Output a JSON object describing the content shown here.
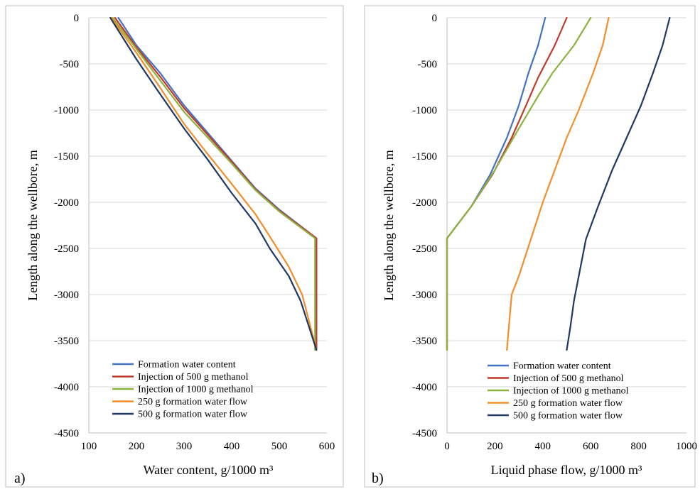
{
  "chart_data": [
    {
      "type": "line",
      "panel_label": "a)",
      "xlabel": "Water content, g/1000 m³",
      "ylabel": "Length along the wellbore, m",
      "xlim": [
        100,
        600
      ],
      "ylim": [
        -4500,
        0
      ],
      "xticks": [
        100,
        200,
        300,
        400,
        500,
        600
      ],
      "yticks": [
        0,
        -500,
        -1000,
        -1500,
        -2000,
        -2500,
        -3000,
        -3500,
        -4000,
        -4500
      ],
      "grid": "horizontal",
      "legend_position": "bottom-left",
      "series": [
        {
          "name": "Formation water content",
          "color": "#4472C4",
          "points": [
            [
              162,
              0
            ],
            [
              200,
              -300
            ],
            [
              250,
              -600
            ],
            [
              300,
              -950
            ],
            [
              350,
              -1250
            ],
            [
              400,
              -1550
            ],
            [
              450,
              -1850
            ],
            [
              500,
              -2080
            ],
            [
              578,
              -2390
            ],
            [
              578,
              -3600
            ]
          ]
        },
        {
          "name": "Injection of 500 g methanol",
          "color": "#C0392B",
          "points": [
            [
              155,
              0
            ],
            [
              200,
              -320
            ],
            [
              250,
              -640
            ],
            [
              300,
              -980
            ],
            [
              350,
              -1270
            ],
            [
              400,
              -1560
            ],
            [
              450,
              -1860
            ],
            [
              500,
              -2090
            ],
            [
              578,
              -2390
            ],
            [
              578,
              -3600
            ]
          ]
        },
        {
          "name": "Injection of 1000 g methanol",
          "color": "#8DB33F",
          "points": [
            [
              150,
              0
            ],
            [
              200,
              -340
            ],
            [
              250,
              -680
            ],
            [
              300,
              -1020
            ],
            [
              350,
              -1300
            ],
            [
              400,
              -1580
            ],
            [
              450,
              -1870
            ],
            [
              500,
              -2100
            ],
            [
              575,
              -2390
            ],
            [
              575,
              -3600
            ]
          ]
        },
        {
          "name": "250 g formation water flow",
          "color": "#F28E2B",
          "points": [
            [
              147,
              0
            ],
            [
              200,
              -380
            ],
            [
              250,
              -760
            ],
            [
              300,
              -1150
            ],
            [
              350,
              -1480
            ],
            [
              400,
              -1800
            ],
            [
              450,
              -2130
            ],
            [
              480,
              -2370
            ],
            [
              520,
              -2700
            ],
            [
              548,
              -3000
            ],
            [
              578,
              -3600
            ]
          ]
        },
        {
          "name": "500 g formation water flow",
          "color": "#1F3864",
          "points": [
            [
              145,
              0
            ],
            [
              200,
              -450
            ],
            [
              250,
              -830
            ],
            [
              300,
              -1200
            ],
            [
              350,
              -1540
            ],
            [
              400,
              -1900
            ],
            [
              450,
              -2230
            ],
            [
              480,
              -2500
            ],
            [
              520,
              -2800
            ],
            [
              545,
              -3070
            ],
            [
              578,
              -3600
            ]
          ]
        }
      ]
    },
    {
      "type": "line",
      "panel_label": "b)",
      "xlabel": "Liquid phase flow, g/1000 m³",
      "ylabel": "Length along the wellbore, m",
      "xlim": [
        0,
        1000
      ],
      "ylim": [
        -4500,
        0
      ],
      "xticks": [
        0,
        200,
        400,
        600,
        800,
        1000
      ],
      "yticks": [
        0,
        -500,
        -1000,
        -1500,
        -2000,
        -2500,
        -3000,
        -3500,
        -4000,
        -4500
      ],
      "grid": "horizontal",
      "legend_position": "bottom-center",
      "series": [
        {
          "name": "Formation water content",
          "color": "#4472C4",
          "points": [
            [
              410,
              0
            ],
            [
              380,
              -300
            ],
            [
              340,
              -600
            ],
            [
              300,
              -950
            ],
            [
              250,
              -1300
            ],
            [
              180,
              -1700
            ],
            [
              100,
              -2050
            ],
            [
              0,
              -2390
            ],
            [
              0,
              -3600
            ]
          ]
        },
        {
          "name": "Injection of 500 g methanol",
          "color": "#C0392B",
          "points": [
            [
              500,
              0
            ],
            [
              450,
              -300
            ],
            [
              380,
              -650
            ],
            [
              330,
              -950
            ],
            [
              270,
              -1300
            ],
            [
              190,
              -1700
            ],
            [
              100,
              -2050
            ],
            [
              0,
              -2390
            ],
            [
              0,
              -3600
            ]
          ]
        },
        {
          "name": "Injection of 1000 g methanol",
          "color": "#8DB33F",
          "points": [
            [
              600,
              0
            ],
            [
              530,
              -300
            ],
            [
              440,
              -600
            ],
            [
              380,
              -850
            ],
            [
              300,
              -1200
            ],
            [
              200,
              -1650
            ],
            [
              100,
              -2050
            ],
            [
              0,
              -2390
            ],
            [
              0,
              -3600
            ]
          ]
        },
        {
          "name": "250 g formation water flow",
          "color": "#F28E2B",
          "points": [
            [
              675,
              0
            ],
            [
              650,
              -300
            ],
            [
              610,
              -600
            ],
            [
              550,
              -1000
            ],
            [
              500,
              -1300
            ],
            [
              450,
              -1650
            ],
            [
              400,
              -2000
            ],
            [
              350,
              -2400
            ],
            [
              300,
              -2800
            ],
            [
              270,
              -3000
            ],
            [
              260,
              -3300
            ],
            [
              250,
              -3600
            ]
          ]
        },
        {
          "name": "500 g formation water flow",
          "color": "#1F3864",
          "points": [
            [
              930,
              0
            ],
            [
              900,
              -300
            ],
            [
              860,
              -600
            ],
            [
              810,
              -950
            ],
            [
              750,
              -1300
            ],
            [
              690,
              -1650
            ],
            [
              630,
              -2050
            ],
            [
              580,
              -2400
            ],
            [
              550,
              -2800
            ],
            [
              530,
              -3070
            ],
            [
              515,
              -3350
            ],
            [
              500,
              -3600
            ]
          ]
        }
      ]
    }
  ]
}
